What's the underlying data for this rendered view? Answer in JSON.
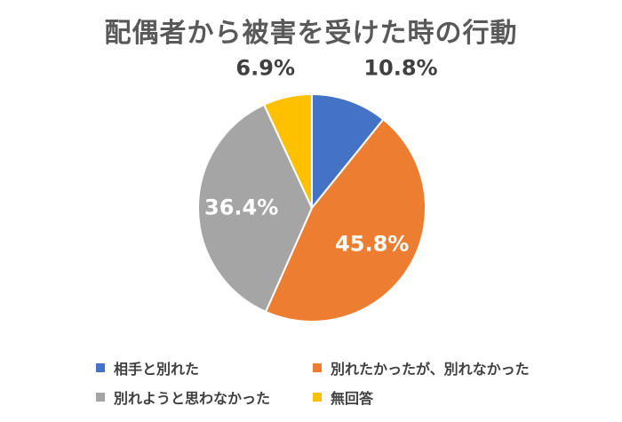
{
  "chart_data": {
    "type": "pie",
    "title": "配偶者から被害を受けた時の行動",
    "categories": [
      "相手と別れた",
      "別れたかったが、別れなかった",
      "別れようと思わなかった",
      "無回答"
    ],
    "values": [
      10.8,
      45.8,
      36.4,
      6.9
    ],
    "labels": [
      "10.8%",
      "45.8%",
      "36.4%",
      "6.9%"
    ],
    "colors": [
      "#4472C4",
      "#ED7D31",
      "#A5A5A5",
      "#FFC000"
    ],
    "label_colors": [
      "#404040",
      "#ffffff",
      "#ffffff",
      "#404040"
    ],
    "legend_position": "bottom"
  }
}
